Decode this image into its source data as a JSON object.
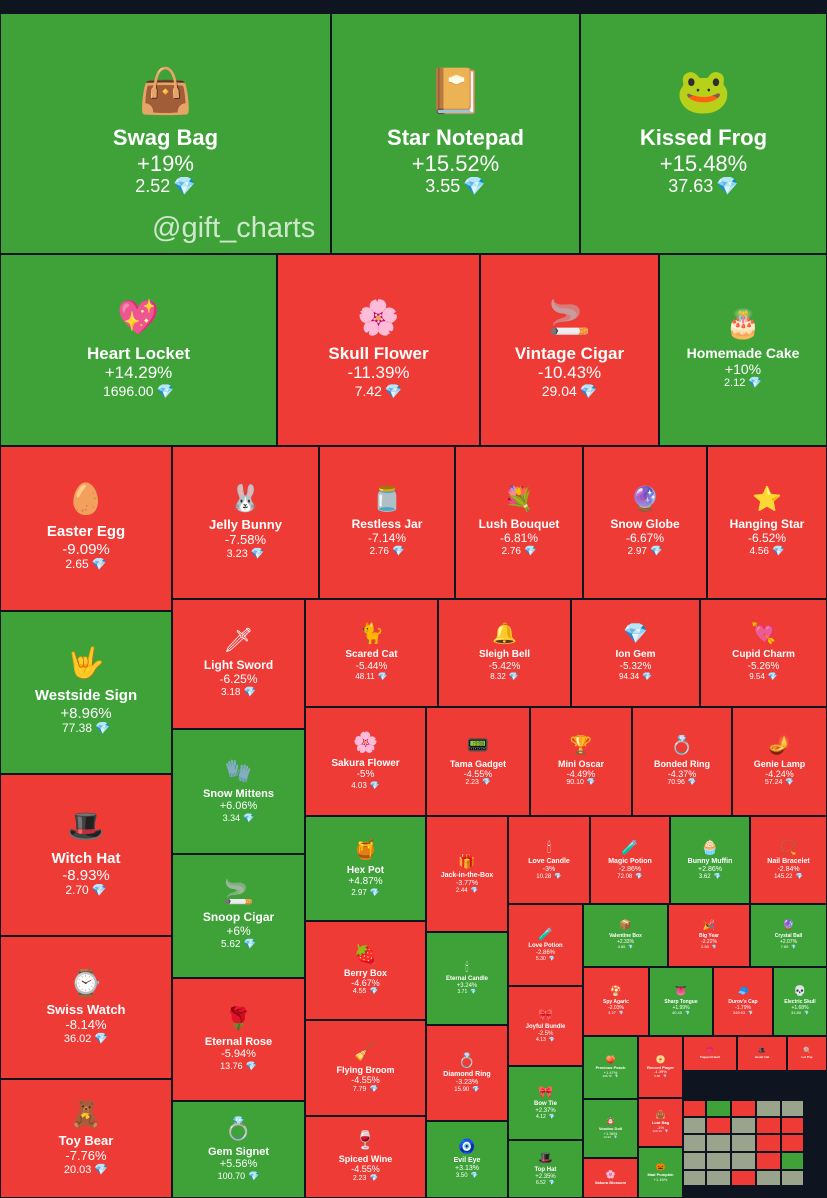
{
  "watermark": "@gift_charts",
  "currency_icon": "diamond-icon",
  "colors": {
    "up": "#3ea238",
    "down": "#ef3b36",
    "background": "#0e1420",
    "gem": "#5ac8fa"
  },
  "chart_data": {
    "type": "treemap",
    "title": "",
    "tiles": [
      {
        "name": "Swag Bag",
        "change": "+19%",
        "value": "2.52",
        "icon": "bag-icon"
      },
      {
        "name": "Star Notepad",
        "change": "+15.52%",
        "value": "3.55",
        "icon": "notepad-icon"
      },
      {
        "name": "Kissed Frog",
        "change": "+15.48%",
        "value": "37.63",
        "icon": "frog-icon"
      },
      {
        "name": "Heart Locket",
        "change": "+14.29%",
        "value": "1696.00",
        "icon": "locket-icon"
      },
      {
        "name": "Skull Flower",
        "change": "-11.39%",
        "value": "7.42",
        "icon": "flower-icon"
      },
      {
        "name": "Vintage Cigar",
        "change": "-10.43%",
        "value": "29.04",
        "icon": "cigar-icon"
      },
      {
        "name": "Homemade Cake",
        "change": "+10%",
        "value": "2.12",
        "icon": "cake-icon"
      },
      {
        "name": "Easter Egg",
        "change": "-9.09%",
        "value": "2.65",
        "icon": "egg-icon"
      },
      {
        "name": "Jelly Bunny",
        "change": "-7.58%",
        "value": "3.23",
        "icon": "bunny-icon"
      },
      {
        "name": "Restless Jar",
        "change": "-7.14%",
        "value": "2.76",
        "icon": "jar-icon"
      },
      {
        "name": "Lush Bouquet",
        "change": "-6.81%",
        "value": "2.76",
        "icon": "bouquet-icon"
      },
      {
        "name": "Snow Globe",
        "change": "-6.67%",
        "value": "2.97",
        "icon": "globe-icon"
      },
      {
        "name": "Hanging Star",
        "change": "-6.52%",
        "value": "4.56",
        "icon": "star-icon"
      },
      {
        "name": "Westside Sign",
        "change": "+8.96%",
        "value": "77.38",
        "icon": "hand-sign-icon"
      },
      {
        "name": "Light Sword",
        "change": "-6.25%",
        "value": "3.18",
        "icon": "sword-icon"
      },
      {
        "name": "Scared Cat",
        "change": "-5.44%",
        "value": "48.11",
        "icon": "cat-icon"
      },
      {
        "name": "Sleigh Bell",
        "change": "-5.42%",
        "value": "8.32",
        "icon": "bell-icon"
      },
      {
        "name": "Ion Gem",
        "change": "-5.32%",
        "value": "94.34",
        "icon": "gem-icon"
      },
      {
        "name": "Cupid Charm",
        "change": "-5.26%",
        "value": "9.54",
        "icon": "charm-icon"
      },
      {
        "name": "Witch Hat",
        "change": "-8.93%",
        "value": "2.70",
        "icon": "hat-icon"
      },
      {
        "name": "Snow Mittens",
        "change": "+6.06%",
        "value": "3.34",
        "icon": "mittens-icon"
      },
      {
        "name": "Sakura Flower",
        "change": "-5%",
        "value": "4.03",
        "icon": "sakura-icon"
      },
      {
        "name": "Tama Gadget",
        "change": "-4.55%",
        "value": "2.23",
        "icon": "gadget-icon"
      },
      {
        "name": "Mini Oscar",
        "change": "-4.49%",
        "value": "90.10",
        "icon": "oscar-icon"
      },
      {
        "name": "Bonded Ring",
        "change": "-4.37%",
        "value": "70.96",
        "icon": "ring-icon"
      },
      {
        "name": "Genie Lamp",
        "change": "-4.24%",
        "value": "57.24",
        "icon": "lamp-icon"
      },
      {
        "name": "Hex Pot",
        "change": "+4.87%",
        "value": "2.97",
        "icon": "pot-icon"
      },
      {
        "name": "Jack-in-the-Box",
        "change": "-3.77%",
        "value": "2.44",
        "icon": "jack-box-icon"
      },
      {
        "name": "Love Candle",
        "change": "-3%",
        "value": "10.28",
        "icon": "candle-icon"
      },
      {
        "name": "Magic Potion",
        "change": "-2.86%",
        "value": "72.08",
        "icon": "potion-icon"
      },
      {
        "name": "Bunny Muffin",
        "change": "+2.86%",
        "value": "3.62",
        "icon": "muffin-icon"
      },
      {
        "name": "Nail Bracelet",
        "change": "-2.84%",
        "value": "145.22",
        "icon": "bracelet-icon"
      },
      {
        "name": "Snoop Cigar",
        "change": "+6%",
        "value": "5.62",
        "icon": "cigar-icon"
      },
      {
        "name": "Love Potion",
        "change": "-2.86%",
        "value": "5.30",
        "icon": "potion-icon"
      },
      {
        "name": "Valentine Box",
        "change": "+2.33%",
        "value": "4.65",
        "icon": "box-icon"
      },
      {
        "name": "Big Year",
        "change": "-2.22%",
        "value": "2.53",
        "icon": "year-icon"
      },
      {
        "name": "Crystal Ball",
        "change": "+2.07%",
        "value": "7.69",
        "icon": "ball-icon"
      },
      {
        "name": "Swiss Watch",
        "change": "-8.14%",
        "value": "36.02",
        "icon": "watch-icon"
      },
      {
        "name": "Eternal Rose",
        "change": "-5.94%",
        "value": "13.76",
        "icon": "rose-icon"
      },
      {
        "name": "Berry Box",
        "change": "-4.67%",
        "value": "4.55",
        "icon": "berry-icon"
      },
      {
        "name": "Eternal Candle",
        "change": "+3.24%",
        "value": "3.71",
        "icon": "candle-icon"
      },
      {
        "name": "Spy Agaric",
        "change": "-2.03%",
        "value": "3.27",
        "icon": "mushroom-icon"
      },
      {
        "name": "Sharp Tongue",
        "change": "+1.99%",
        "value": "40.45",
        "icon": "tongue-icon"
      },
      {
        "name": "Durov's Cap",
        "change": "-1.79%",
        "value": "349.93",
        "icon": "cap-icon"
      },
      {
        "name": "Electric Skull",
        "change": "+1.68%",
        "value": "31.80",
        "icon": "skull-icon"
      },
      {
        "name": "Joyful Bundle",
        "change": "-2.5%",
        "value": "4.13",
        "icon": "bundle-icon"
      },
      {
        "name": "Flying Broom",
        "change": "-4.55%",
        "value": "7.79",
        "icon": "broom-icon"
      },
      {
        "name": "Diamond Ring",
        "change": "-3.23%",
        "value": "15.90",
        "icon": "ring-icon"
      },
      {
        "name": "Precious Peach",
        "change": "+1.47%",
        "value": "306.79",
        "icon": "peach-icon"
      },
      {
        "name": "Record Player",
        "change": "-1.39%",
        "value": "5.68",
        "icon": "record-icon"
      },
      {
        "name": "Toy Bear",
        "change": "-7.76%",
        "value": "20.03",
        "icon": "bear-icon"
      },
      {
        "name": "Gem Signet",
        "change": "+5.56%",
        "value": "100.70",
        "icon": "signet-icon"
      },
      {
        "name": "Spiced Wine",
        "change": "-4.55%",
        "value": "2.23",
        "icon": "wine-icon"
      },
      {
        "name": "Evil Eye",
        "change": "+3.13%",
        "value": "3.50",
        "icon": "eye-icon"
      },
      {
        "name": "Bow Tie",
        "change": "+2.37%",
        "value": "4.12",
        "icon": "bowtie-icon"
      },
      {
        "name": "Top Hat",
        "change": "+2.35%",
        "value": "6.52",
        "icon": "tophat-icon"
      },
      {
        "name": "Voodoo Doll",
        "change": "+1.36%",
        "value": "14.32",
        "icon": "doll-icon"
      },
      {
        "name": "Loot Bag",
        "change": "-1%",
        "value": "124.14",
        "icon": "bag-icon"
      },
      {
        "name": "Sakura Blossom",
        "change": "",
        "value": "",
        "icon": "sakura-icon"
      },
      {
        "name": "Mad Pumpkin",
        "change": "+1.16%",
        "value": "",
        "icon": "pumpkin-icon"
      },
      {
        "name": "Trapped Heart",
        "change": "",
        "value": "",
        "icon": "heart-icon"
      },
      {
        "name": "Jester Hat",
        "change": "",
        "value": "",
        "icon": "hat-icon"
      },
      {
        "name": "Lol Pop",
        "change": "",
        "value": "",
        "icon": "lollipop-icon"
      }
    ]
  }
}
